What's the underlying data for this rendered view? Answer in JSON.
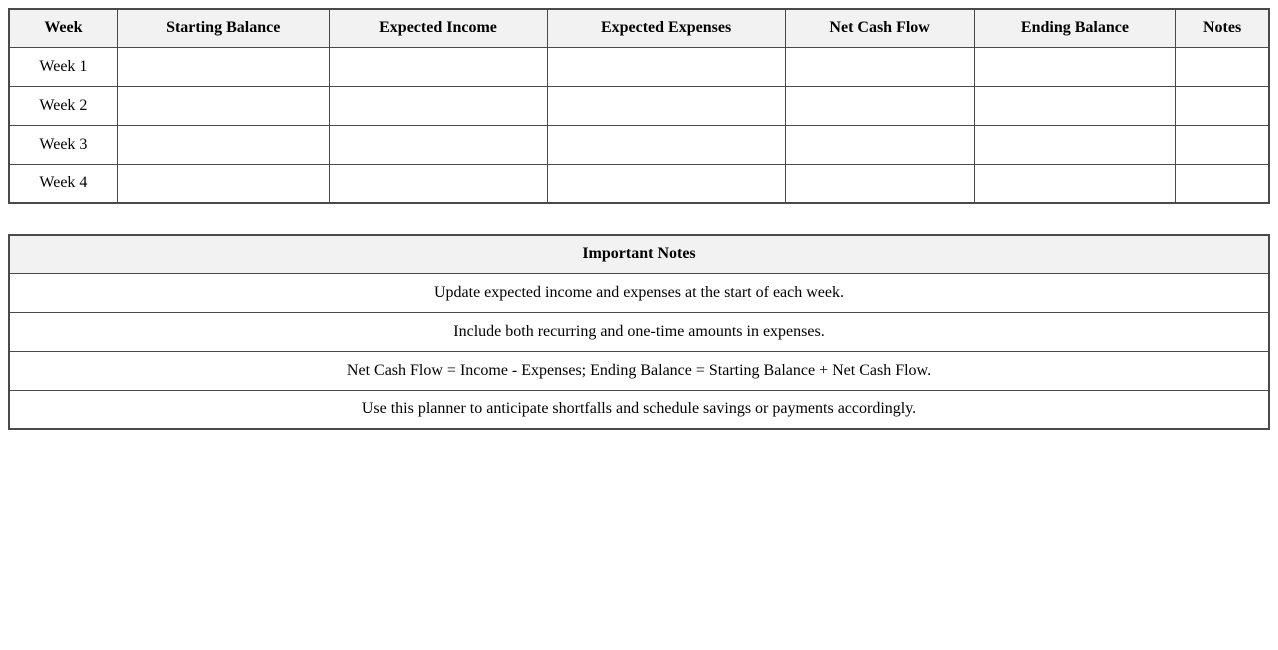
{
  "colors": {
    "page_background": "#ffffff",
    "header_background": "#f2f2f2",
    "border": "#4a4a4a",
    "text": "#000000"
  },
  "planner_table": {
    "headers": [
      "Week",
      "Starting Balance",
      "Expected Income",
      "Expected Expenses",
      "Net Cash Flow",
      "Ending Balance",
      "Notes"
    ],
    "rows": [
      {
        "week": "Week 1",
        "starting_balance": "",
        "expected_income": "",
        "expected_expenses": "",
        "net_cash_flow": "",
        "ending_balance": "",
        "notes": ""
      },
      {
        "week": "Week 2",
        "starting_balance": "",
        "expected_income": "",
        "expected_expenses": "",
        "net_cash_flow": "",
        "ending_balance": "",
        "notes": ""
      },
      {
        "week": "Week 3",
        "starting_balance": "",
        "expected_income": "",
        "expected_expenses": "",
        "net_cash_flow": "",
        "ending_balance": "",
        "notes": ""
      },
      {
        "week": "Week 4",
        "starting_balance": "",
        "expected_income": "",
        "expected_expenses": "",
        "net_cash_flow": "",
        "ending_balance": "",
        "notes": ""
      }
    ]
  },
  "notes_table": {
    "title": "Important Notes",
    "items": [
      "Update expected income and expenses at the start of each week.",
      "Include both recurring and one-time amounts in expenses.",
      "Net Cash Flow = Income - Expenses; Ending Balance = Starting Balance + Net Cash Flow.",
      "Use this planner to anticipate shortfalls and schedule savings or payments accordingly."
    ]
  }
}
